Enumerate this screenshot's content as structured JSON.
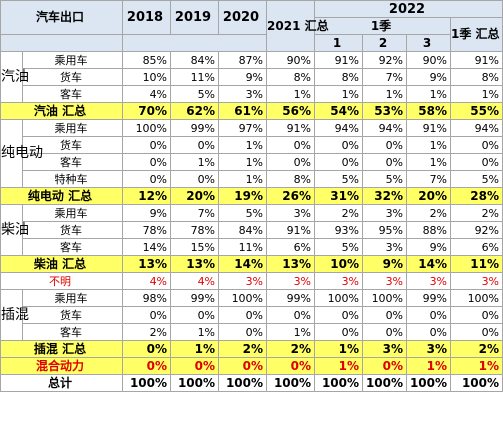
{
  "header": {
    "title": "汽车出口",
    "year_2022": "2022",
    "q1": "1季",
    "q1_total": "1季 汇总",
    "years": [
      "2018",
      "2019",
      "2020",
      "2021 汇总"
    ],
    "months": [
      "1",
      "2",
      "3"
    ]
  },
  "groups": {
    "gasoline": "汽油",
    "electric": "纯电动",
    "diesel": "柴油",
    "plugin": "插混"
  },
  "rows": [
    {
      "cat": "乘用车",
      "vals": [
        "85%",
        "84%",
        "87%",
        "90%",
        "91%",
        "92%",
        "90%",
        "91%"
      ]
    },
    {
      "cat": "货车",
      "vals": [
        "10%",
        "11%",
        "9%",
        "8%",
        "8%",
        "7%",
        "9%",
        "8%"
      ]
    },
    {
      "cat": "客车",
      "vals": [
        "4%",
        "5%",
        "3%",
        "1%",
        "1%",
        "1%",
        "1%",
        "1%"
      ]
    },
    {
      "label": "汽油 汇总",
      "vals": [
        "70%",
        "62%",
        "61%",
        "56%",
        "54%",
        "53%",
        "58%",
        "55%"
      ]
    },
    {
      "cat": "乘用车",
      "vals": [
        "100%",
        "99%",
        "97%",
        "91%",
        "94%",
        "94%",
        "91%",
        "94%"
      ]
    },
    {
      "cat": "货车",
      "vals": [
        "0%",
        "0%",
        "1%",
        "0%",
        "0%",
        "0%",
        "1%",
        "0%"
      ]
    },
    {
      "cat": "客车",
      "vals": [
        "0%",
        "1%",
        "1%",
        "0%",
        "0%",
        "0%",
        "1%",
        "0%"
      ]
    },
    {
      "cat": "特种车",
      "vals": [
        "0%",
        "0%",
        "1%",
        "8%",
        "5%",
        "5%",
        "7%",
        "5%"
      ]
    },
    {
      "label": "纯电动 汇总",
      "vals": [
        "12%",
        "20%",
        "19%",
        "26%",
        "31%",
        "32%",
        "20%",
        "28%"
      ]
    },
    {
      "cat": "乘用车",
      "vals": [
        "9%",
        "7%",
        "5%",
        "3%",
        "2%",
        "3%",
        "2%",
        "2%"
      ]
    },
    {
      "cat": "货车",
      "vals": [
        "78%",
        "78%",
        "84%",
        "91%",
        "93%",
        "95%",
        "88%",
        "92%"
      ]
    },
    {
      "cat": "客车",
      "vals": [
        "14%",
        "15%",
        "11%",
        "6%",
        "5%",
        "3%",
        "9%",
        "6%"
      ]
    },
    {
      "label": "柴油 汇总",
      "vals": [
        "13%",
        "13%",
        "14%",
        "13%",
        "10%",
        "9%",
        "14%",
        "11%"
      ]
    },
    {
      "label": "不明",
      "vals": [
        "4%",
        "4%",
        "3%",
        "3%",
        "3%",
        "3%",
        "3%",
        "3%"
      ]
    },
    {
      "cat": "乘用车",
      "vals": [
        "98%",
        "99%",
        "100%",
        "99%",
        "100%",
        "100%",
        "99%",
        "100%"
      ]
    },
    {
      "cat": "货车",
      "vals": [
        "0%",
        "0%",
        "0%",
        "0%",
        "0%",
        "0%",
        "0%",
        "0%"
      ]
    },
    {
      "cat": "客车",
      "vals": [
        "2%",
        "1%",
        "0%",
        "1%",
        "0%",
        "0%",
        "0%",
        "0%"
      ]
    },
    {
      "label": "插混 汇总",
      "vals": [
        "0%",
        "1%",
        "2%",
        "2%",
        "1%",
        "3%",
        "3%",
        "2%"
      ]
    },
    {
      "label": "混合动力",
      "vals": [
        "0%",
        "0%",
        "0%",
        "0%",
        "1%",
        "0%",
        "1%",
        "1%"
      ]
    },
    {
      "label": "总计",
      "vals": [
        "100%",
        "100%",
        "100%",
        "100%",
        "100%",
        "100%",
        "100%",
        "100%"
      ]
    }
  ],
  "colors": {
    "header_bg": "#dce6f2",
    "summary_bg": "#ffff66",
    "red_text": "#e00000",
    "border": "#a6a6a6"
  }
}
